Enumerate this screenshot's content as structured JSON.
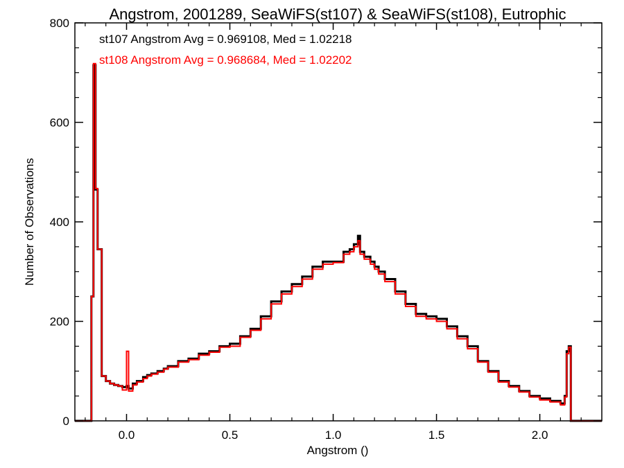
{
  "chart_data": {
    "type": "line",
    "title": "Angstrom, 2001289, SeaWiFS(st107) & SeaWiFS(st108), Eutrophic",
    "xlabel": "Angstrom ()",
    "ylabel": "Number of Observations",
    "xlim": [
      -0.25,
      2.3
    ],
    "ylim": [
      0,
      800
    ],
    "xticks": [
      0.0,
      0.5,
      1.0,
      1.5,
      2.0
    ],
    "xtick_labels": [
      "0.0",
      "0.5",
      "1.0",
      "1.5",
      "2.0"
    ],
    "yticks": [
      0,
      200,
      400,
      600,
      800
    ],
    "ytick_labels": [
      "0",
      "200",
      "400",
      "600",
      "800"
    ],
    "grid": false,
    "step": "histogram",
    "annotations": [
      {
        "text": "st107 Angstrom Avg = 0.969108, Med = 1.02218",
        "color": "#000000"
      },
      {
        "text": "st108 Angstrom Avg = 0.968684, Med = 1.02202",
        "color": "#ff0000"
      }
    ],
    "series": [
      {
        "color": "#000000",
        "x": [
          -0.25,
          -0.18,
          -0.17,
          -0.16,
          -0.15,
          -0.14,
          -0.13,
          -0.12,
          -0.1,
          -0.08,
          -0.06,
          -0.04,
          -0.02,
          0.0,
          0.01,
          0.03,
          0.05,
          0.08,
          0.1,
          0.12,
          0.15,
          0.18,
          0.2,
          0.25,
          0.3,
          0.35,
          0.4,
          0.45,
          0.5,
          0.55,
          0.6,
          0.65,
          0.7,
          0.75,
          0.8,
          0.85,
          0.9,
          0.95,
          1.0,
          1.05,
          1.08,
          1.1,
          1.12,
          1.13,
          1.15,
          1.18,
          1.2,
          1.22,
          1.25,
          1.3,
          1.35,
          1.4,
          1.45,
          1.5,
          1.55,
          1.6,
          1.65,
          1.7,
          1.75,
          1.8,
          1.85,
          1.9,
          1.95,
          2.0,
          2.05,
          2.1,
          2.12,
          2.13,
          2.14,
          2.15,
          2.2,
          2.3
        ],
        "values": [
          0,
          0,
          250,
          715,
          465,
          345,
          345,
          90,
          80,
          75,
          72,
          70,
          68,
          70,
          65,
          75,
          80,
          88,
          92,
          95,
          100,
          105,
          110,
          120,
          125,
          135,
          140,
          150,
          155,
          170,
          185,
          210,
          240,
          260,
          275,
          290,
          310,
          320,
          320,
          340,
          345,
          355,
          372,
          340,
          330,
          320,
          310,
          300,
          285,
          260,
          235,
          215,
          210,
          205,
          190,
          170,
          150,
          120,
          100,
          80,
          70,
          60,
          50,
          45,
          40,
          35,
          50,
          140,
          150,
          0,
          0,
          0
        ]
      },
      {
        "color": "#ff0000",
        "x": [
          -0.25,
          -0.18,
          -0.17,
          -0.16,
          -0.15,
          -0.14,
          -0.13,
          -0.12,
          -0.1,
          -0.08,
          -0.06,
          -0.04,
          -0.02,
          0.0,
          0.01,
          0.03,
          0.05,
          0.08,
          0.1,
          0.12,
          0.15,
          0.18,
          0.2,
          0.25,
          0.3,
          0.35,
          0.4,
          0.45,
          0.5,
          0.55,
          0.6,
          0.65,
          0.7,
          0.75,
          0.8,
          0.85,
          0.9,
          0.95,
          1.0,
          1.05,
          1.08,
          1.1,
          1.12,
          1.13,
          1.15,
          1.18,
          1.2,
          1.22,
          1.25,
          1.3,
          1.35,
          1.4,
          1.45,
          1.5,
          1.55,
          1.6,
          1.65,
          1.7,
          1.75,
          1.8,
          1.85,
          1.9,
          1.95,
          2.0,
          2.05,
          2.1,
          2.12,
          2.13,
          2.14,
          2.15,
          2.2,
          2.3
        ],
        "values": [
          0,
          0,
          250,
          718,
          467,
          345,
          345,
          90,
          80,
          75,
          72,
          70,
          62,
          140,
          60,
          72,
          78,
          85,
          90,
          94,
          98,
          104,
          108,
          118,
          123,
          132,
          138,
          148,
          150,
          168,
          182,
          205,
          235,
          255,
          270,
          285,
          305,
          315,
          318,
          335,
          340,
          350,
          362,
          335,
          325,
          315,
          305,
          295,
          280,
          255,
          230,
          210,
          205,
          200,
          185,
          165,
          145,
          118,
          98,
          78,
          68,
          58,
          48,
          42,
          38,
          32,
          48,
          135,
          148,
          0,
          0,
          0
        ]
      }
    ]
  }
}
